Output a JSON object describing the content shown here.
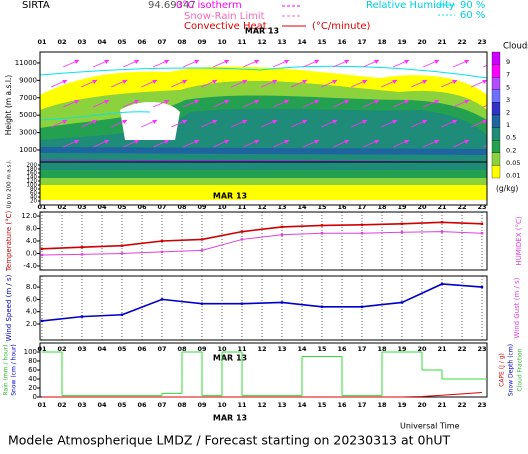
{
  "header": {
    "station": "SIRTA",
    "coord": "94.69347",
    "isotherm": "0°C isotherm",
    "snow_rain": "Snow-Rain Limit",
    "convective": "Convective Heat.",
    "convective_unit": "(°C/minute)",
    "rh": "Relative Humidity",
    "rh_high": "90 %",
    "rh_low": "60 %"
  },
  "time_axis": {
    "xlim": [
      0.9,
      23.25
    ],
    "date": "MAR 13",
    "xlabel": "Universal Time",
    "xticks": [
      {
        "value": 1,
        "label": "01"
      },
      {
        "value": 2,
        "label": "02"
      },
      {
        "value": 3,
        "label": "03"
      },
      {
        "value": 4,
        "label": "04"
      },
      {
        "value": 5,
        "label": "05"
      },
      {
        "value": 6,
        "label": "06"
      },
      {
        "value": 7,
        "label": "07"
      },
      {
        "value": 8,
        "label": "08"
      },
      {
        "value": 9,
        "label": "09"
      },
      {
        "value": 10,
        "label": "10"
      },
      {
        "value": 11,
        "label": "11"
      },
      {
        "value": 12,
        "label": "12"
      },
      {
        "value": 13,
        "label": "13"
      },
      {
        "value": 14,
        "label": "14"
      },
      {
        "value": 15,
        "label": "15"
      },
      {
        "value": 16,
        "label": "16"
      },
      {
        "value": 17,
        "label": "17"
      },
      {
        "value": 18,
        "label": "18"
      },
      {
        "value": 19,
        "label": "19"
      },
      {
        "value": 20,
        "label": "20"
      },
      {
        "value": 21,
        "label": "21"
      },
      {
        "value": 22,
        "label": "22"
      },
      {
        "value": 23,
        "label": "23"
      }
    ]
  },
  "footer": "Modele Atmospherique LMDZ / Forecast starting on 20230313 at 0hUT",
  "chart_data": [
    {
      "type": "heatmap",
      "ylabel": "Height (m a.s.l.)",
      "ylim": [
        -150,
        12260
      ],
      "yticks": [
        1000,
        3000,
        5000,
        7000,
        9000,
        11000
      ],
      "low_ylabel": "Up to 200 m a.s.l.",
      "low_ylim": [
        0,
        215
      ],
      "low_yticks": [
        20,
        40,
        60,
        80,
        100,
        120,
        140,
        160,
        180,
        200
      ],
      "colorbar": {
        "title": "Clouds",
        "unit": "(g/kg)",
        "labels": [
          9,
          7,
          5,
          3,
          2,
          1,
          0.5,
          0.2,
          0.05,
          0.01
        ],
        "colors": [
          "#cc00ff",
          "#ff00ff",
          "#b44bff",
          "#7070ff",
          "#3232c8",
          "#1e64a0",
          "#1e8c78",
          "#23a050",
          "#8cd23c",
          "#ffff00"
        ]
      }
    },
    {
      "type": "line",
      "ylim": [
        -5.3,
        13.3
      ],
      "yticks": [
        {
          "value": -4,
          "label": "-4.0"
        },
        {
          "value": 0,
          "label": "0.0"
        },
        {
          "value": 4,
          "label": "4.0"
        },
        {
          "value": 8,
          "label": "8.0"
        },
        {
          "value": 12,
          "label": "12.0"
        }
      ],
      "ylabel": "Temperature (°C)",
      "y2label": "HUMIDEX (°C)",
      "x": [
        1,
        3,
        5,
        7,
        9,
        11,
        13,
        15,
        17,
        19,
        21,
        23
      ],
      "series": [
        {
          "name": "Temperature",
          "color": "#d00000",
          "values": [
            1.5,
            2,
            2.5,
            4,
            4.5,
            7,
            8.5,
            9,
            9.2,
            9.5,
            10,
            9.5
          ]
        },
        {
          "name": "HUMIDEX",
          "color": "#e040e0",
          "values": [
            -0.5,
            -0.3,
            0,
            0.5,
            1,
            4.5,
            6,
            6.5,
            6.5,
            6.8,
            7,
            6.5
          ]
        }
      ]
    },
    {
      "type": "line",
      "ylim": [
        -0.6,
        9.8
      ],
      "yticks": [
        {
          "value": 2,
          "label": "2.0"
        },
        {
          "value": 4,
          "label": "4.0"
        },
        {
          "value": 6,
          "label": "6.0"
        },
        {
          "value": 8,
          "label": "8.0"
        }
      ],
      "ylabel": "Wind Speed (m / s)",
      "y2label": "Wind Gust (m / s)",
      "x": [
        1,
        3,
        5,
        7,
        9,
        11,
        13,
        15,
        17,
        19,
        21,
        23
      ],
      "series": [
        {
          "name": "Wind Speed",
          "color": "#0000c8",
          "values": [
            2.5,
            3.2,
            3.5,
            6,
            5.3,
            5.3,
            5.5,
            4.8,
            4.8,
            5.5,
            8.5,
            8
          ]
        }
      ]
    },
    {
      "type": "step",
      "ylim": [
        0,
        120
      ],
      "yticks": [
        0,
        20,
        40,
        60,
        80,
        100
      ],
      "ylabel": "Rain (mm / hour)",
      "ylabel2": "Snow (cm / hour)",
      "y2label": "CAPE (J / g)",
      "y2label2": "Snow Depth (cm)",
      "y2label3": "Cloud Fraction",
      "x": [
        1,
        2,
        3,
        4,
        5,
        6,
        7,
        8,
        9,
        10,
        11,
        12,
        13,
        14,
        15,
        16,
        17,
        18,
        19,
        20,
        21,
        22,
        23
      ],
      "series": [
        {
          "name": "Cloud Fraction",
          "color": "#33dd33",
          "values": [
            100,
            3,
            3,
            3,
            3,
            3,
            8,
            100,
            3,
            100,
            3,
            3,
            3,
            90,
            90,
            3,
            3,
            100,
            100,
            60,
            40,
            40,
            40
          ]
        },
        {
          "name": "CAPE",
          "color": "#e00000",
          "values": [
            0,
            0,
            0,
            0,
            0,
            0,
            0,
            0,
            0,
            0,
            0,
            0,
            0,
            0,
            0,
            0,
            0,
            0,
            0,
            1,
            4,
            7,
            10
          ]
        }
      ]
    }
  ]
}
